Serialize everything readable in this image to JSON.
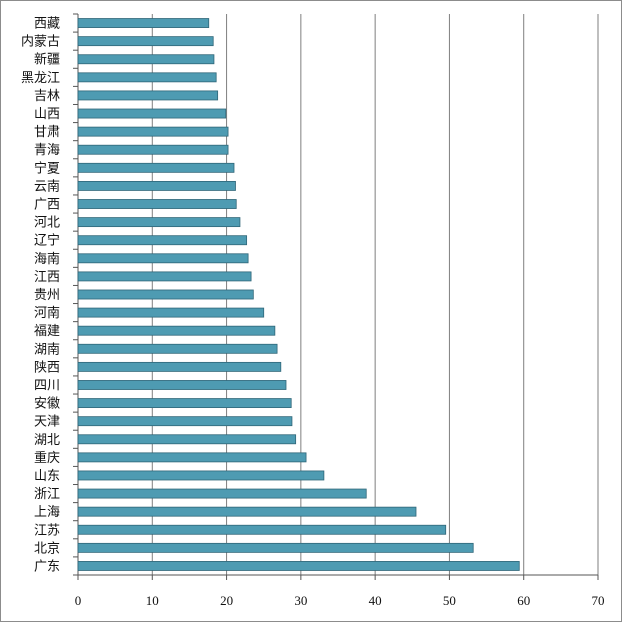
{
  "chart_data": {
    "type": "bar",
    "orientation": "horizontal",
    "categories": [
      "西藏",
      "内蒙古",
      "新疆",
      "黑龙江",
      "吉林",
      "山西",
      "甘肃",
      "青海",
      "宁夏",
      "云南",
      "广西",
      "河北",
      "辽宁",
      "海南",
      "江西",
      "贵州",
      "河南",
      "福建",
      "湖南",
      "陕西",
      "四川",
      "安徽",
      "天津",
      "湖北",
      "重庆",
      "山东",
      "浙江",
      "上海",
      "江苏",
      "北京",
      "广东"
    ],
    "values": [
      17.6,
      18.2,
      18.3,
      18.6,
      18.8,
      19.9,
      20.2,
      20.2,
      21.0,
      21.2,
      21.3,
      21.8,
      22.7,
      22.9,
      23.3,
      23.6,
      25.0,
      26.5,
      26.8,
      27.3,
      28.0,
      28.7,
      28.8,
      29.3,
      30.7,
      33.1,
      38.8,
      45.5,
      49.5,
      53.2,
      59.4
    ],
    "title": "",
    "xlabel": "",
    "ylabel": "",
    "xlim": [
      0,
      70
    ],
    "xticks": [
      "0",
      "10",
      "20",
      "30",
      "40",
      "50",
      "60",
      "70"
    ],
    "grid": "vertical",
    "bar_color": "#4e9bb2",
    "bar_stroke": "#2f6678",
    "grid_color": "#7f7f7f"
  }
}
